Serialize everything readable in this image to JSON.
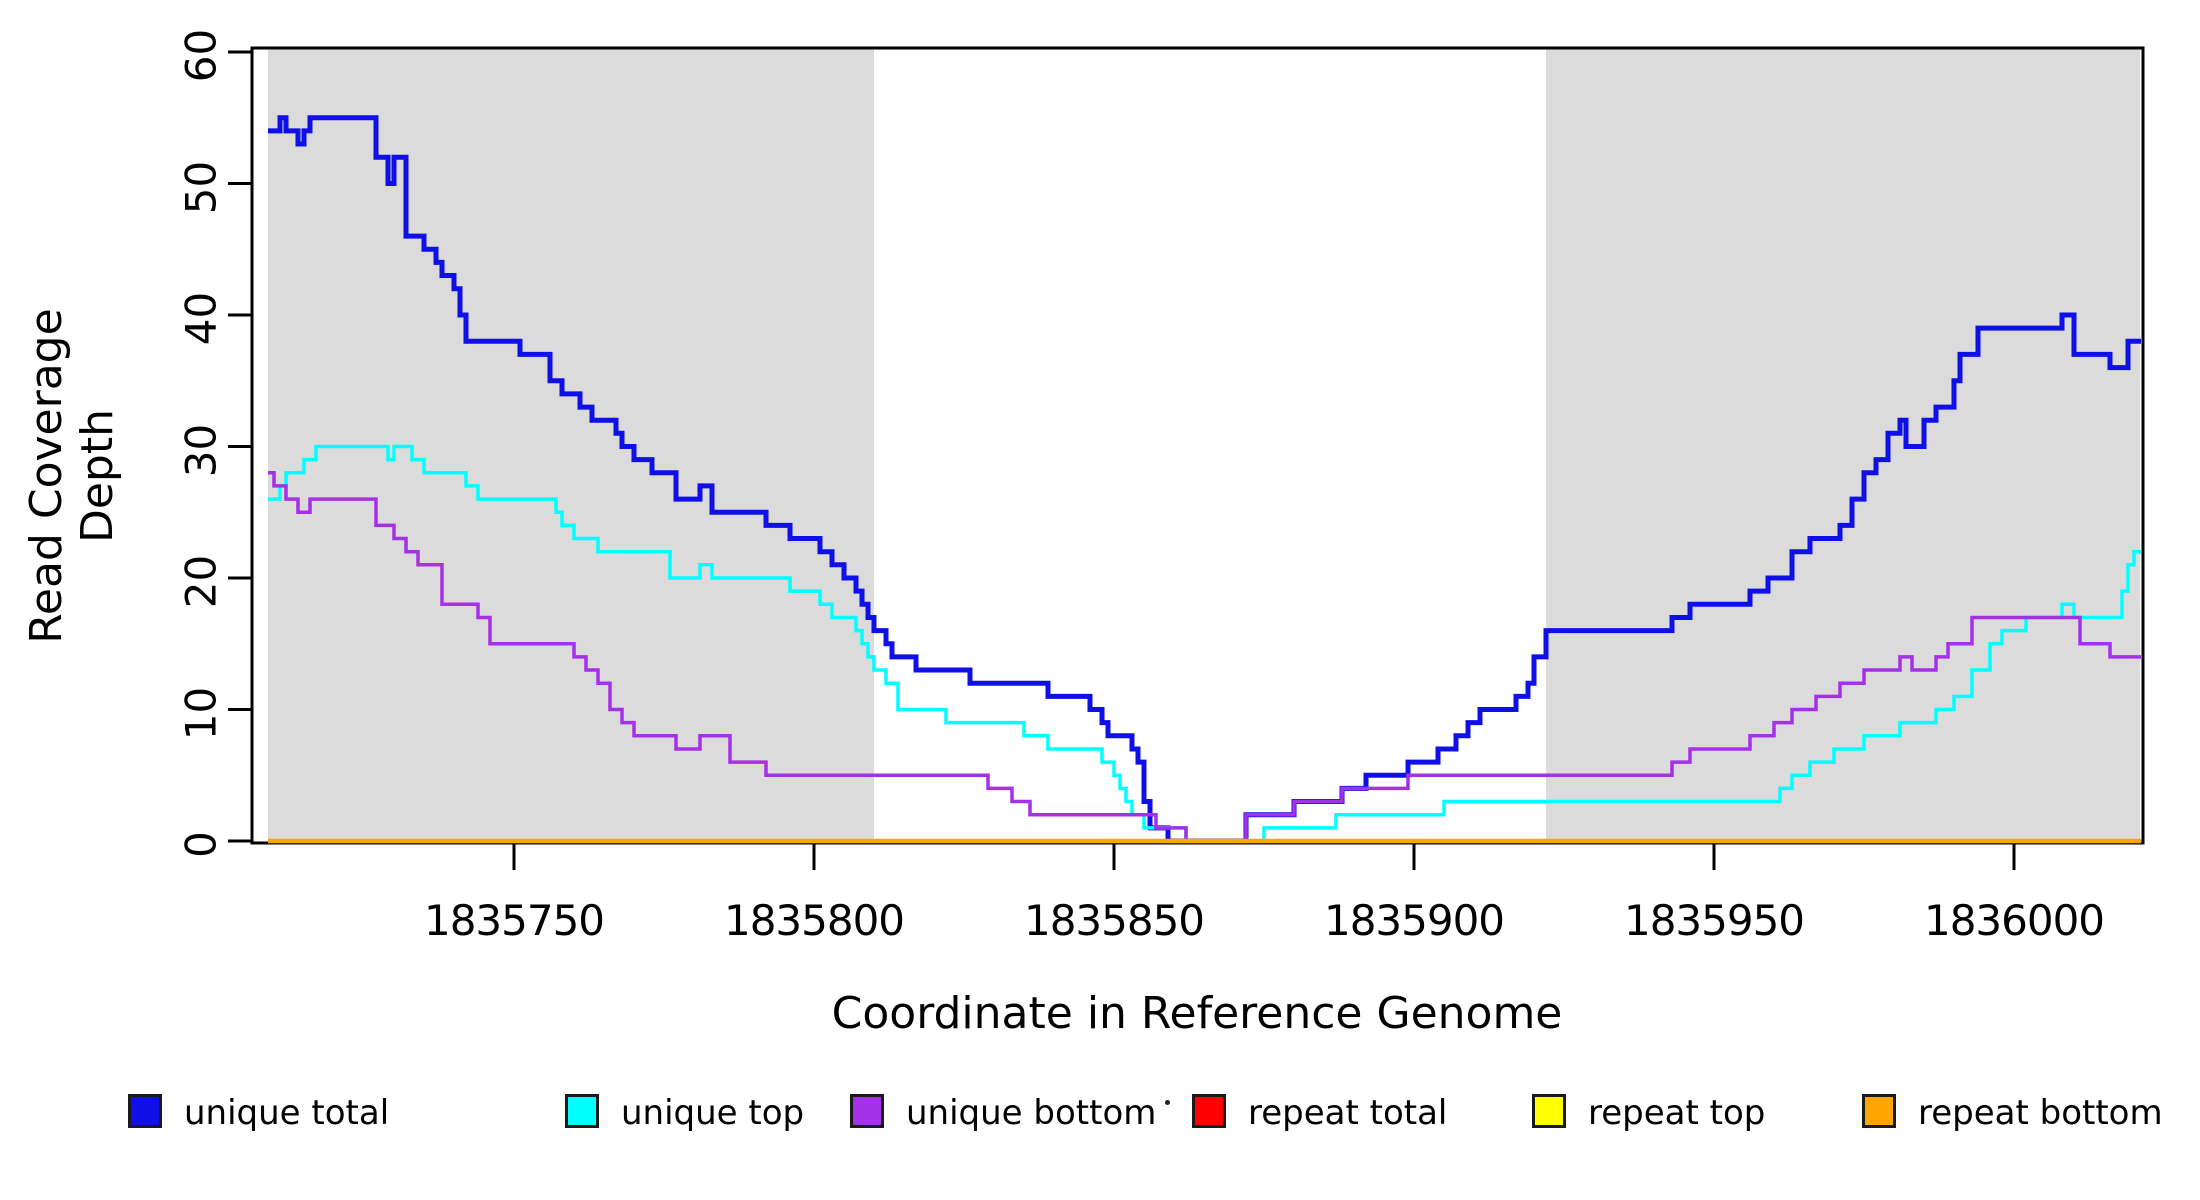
{
  "figure": {
    "x_axis_label": "Coordinate in Reference Genome",
    "y_axis_label": "Read Coverage Depth"
  },
  "chart_data": {
    "type": "line",
    "subtype": "step-coverage-plot",
    "title": "",
    "xlabel": "Coordinate in Reference Genome",
    "ylabel": "Read Coverage Depth",
    "xlim": [
      1835709,
      1836021
    ],
    "ylim": [
      0,
      60
    ],
    "grid": false,
    "x_ticks": [
      1835750,
      1835800,
      1835850,
      1835900,
      1835950,
      1836000
    ],
    "x_tick_labels": [
      "1835750",
      "1835800",
      "1835850",
      "1835900",
      "1835950",
      "1836000"
    ],
    "y_ticks": [
      0,
      10,
      20,
      30,
      40,
      50,
      60
    ],
    "y_tick_labels": [
      "0",
      "10",
      "20",
      "30",
      "40",
      "50",
      "60"
    ],
    "shaded_regions": [
      {
        "x0": 1835709,
        "x1": 1835810
      },
      {
        "x0": 1835922,
        "x1": 1836021
      }
    ],
    "shade_color": "#DBDBDB",
    "frame_color": "#000000",
    "legend_position": "bottom",
    "series": [
      {
        "name": "unique total",
        "color": "#0F0FE8",
        "width": 5,
        "steps": [
          [
            1835709,
            54
          ],
          [
            1835711,
            55
          ],
          [
            1835712,
            54
          ],
          [
            1835714,
            53
          ],
          [
            1835715,
            54
          ],
          [
            1835716,
            55
          ],
          [
            1835727,
            52
          ],
          [
            1835729,
            50
          ],
          [
            1835730,
            52
          ],
          [
            1835732,
            46
          ],
          [
            1835735,
            45
          ],
          [
            1835737,
            44
          ],
          [
            1835738,
            43
          ],
          [
            1835740,
            42
          ],
          [
            1835741,
            40
          ],
          [
            1835742,
            38
          ],
          [
            1835751,
            37
          ],
          [
            1835756,
            35
          ],
          [
            1835758,
            34
          ],
          [
            1835761,
            33
          ],
          [
            1835763,
            32
          ],
          [
            1835767,
            31
          ],
          [
            1835768,
            30
          ],
          [
            1835770,
            29
          ],
          [
            1835773,
            28
          ],
          [
            1835777,
            26
          ],
          [
            1835781,
            27
          ],
          [
            1835783,
            25
          ],
          [
            1835792,
            24
          ],
          [
            1835796,
            23
          ],
          [
            1835801,
            22
          ],
          [
            1835803,
            21
          ],
          [
            1835805,
            20
          ],
          [
            1835807,
            19
          ],
          [
            1835808,
            18
          ],
          [
            1835809,
            17
          ],
          [
            1835810,
            16
          ],
          [
            1835812,
            15
          ],
          [
            1835813,
            14
          ],
          [
            1835817,
            13
          ],
          [
            1835826,
            12
          ],
          [
            1835839,
            11
          ],
          [
            1835846,
            10
          ],
          [
            1835848,
            9
          ],
          [
            1835849,
            8
          ],
          [
            1835853,
            7
          ],
          [
            1835854,
            6
          ],
          [
            1835855,
            3
          ],
          [
            1835856,
            1
          ],
          [
            1835859,
            0
          ],
          [
            1835872,
            2
          ],
          [
            1835880,
            3
          ],
          [
            1835888,
            4
          ],
          [
            1835892,
            5
          ],
          [
            1835899,
            6
          ],
          [
            1835904,
            7
          ],
          [
            1835907,
            8
          ],
          [
            1835909,
            9
          ],
          [
            1835911,
            10
          ],
          [
            1835917,
            11
          ],
          [
            1835919,
            12
          ],
          [
            1835920,
            14
          ],
          [
            1835922,
            16
          ],
          [
            1835943,
            17
          ],
          [
            1835946,
            18
          ],
          [
            1835956,
            19
          ],
          [
            1835959,
            20
          ],
          [
            1835963,
            22
          ],
          [
            1835966,
            23
          ],
          [
            1835971,
            24
          ],
          [
            1835973,
            26
          ],
          [
            1835975,
            28
          ],
          [
            1835977,
            29
          ],
          [
            1835979,
            31
          ],
          [
            1835981,
            32
          ],
          [
            1835982,
            30
          ],
          [
            1835985,
            32
          ],
          [
            1835987,
            33
          ],
          [
            1835990,
            35
          ],
          [
            1835991,
            37
          ],
          [
            1835994,
            39
          ],
          [
            1836008,
            40
          ],
          [
            1836010,
            37
          ],
          [
            1836016,
            36
          ],
          [
            1836019,
            38
          ]
        ]
      },
      {
        "name": "unique top",
        "color": "#00FFFF",
        "width": 3.5,
        "steps": [
          [
            1835709,
            26
          ],
          [
            1835711,
            27
          ],
          [
            1835712,
            28
          ],
          [
            1835715,
            29
          ],
          [
            1835717,
            30
          ],
          [
            1835729,
            29
          ],
          [
            1835730,
            30
          ],
          [
            1835733,
            29
          ],
          [
            1835735,
            28
          ],
          [
            1835742,
            27
          ],
          [
            1835744,
            26
          ],
          [
            1835757,
            25
          ],
          [
            1835758,
            24
          ],
          [
            1835760,
            23
          ],
          [
            1835764,
            22
          ],
          [
            1835776,
            20
          ],
          [
            1835781,
            21
          ],
          [
            1835783,
            20
          ],
          [
            1835796,
            19
          ],
          [
            1835801,
            18
          ],
          [
            1835803,
            17
          ],
          [
            1835807,
            16
          ],
          [
            1835808,
            15
          ],
          [
            1835809,
            14
          ],
          [
            1835810,
            13
          ],
          [
            1835812,
            12
          ],
          [
            1835814,
            10
          ],
          [
            1835822,
            9
          ],
          [
            1835835,
            8
          ],
          [
            1835839,
            7
          ],
          [
            1835848,
            6
          ],
          [
            1835850,
            5
          ],
          [
            1835851,
            4
          ],
          [
            1835852,
            3
          ],
          [
            1835853,
            2
          ],
          [
            1835855,
            1
          ],
          [
            1835862,
            0
          ],
          [
            1835875,
            1
          ],
          [
            1835887,
            2
          ],
          [
            1835905,
            3
          ],
          [
            1835961,
            4
          ],
          [
            1835963,
            5
          ],
          [
            1835966,
            6
          ],
          [
            1835970,
            7
          ],
          [
            1835975,
            8
          ],
          [
            1835981,
            9
          ],
          [
            1835987,
            10
          ],
          [
            1835990,
            11
          ],
          [
            1835993,
            13
          ],
          [
            1835996,
            15
          ],
          [
            1835998,
            16
          ],
          [
            1836002,
            17
          ],
          [
            1836008,
            18
          ],
          [
            1836010,
            17
          ],
          [
            1836018,
            19
          ],
          [
            1836019,
            21
          ],
          [
            1836020,
            22
          ]
        ]
      },
      {
        "name": "unique bottom",
        "color": "#A430E8",
        "width": 3.5,
        "steps": [
          [
            1835709,
            28
          ],
          [
            1835710,
            27
          ],
          [
            1835712,
            26
          ],
          [
            1835714,
            25
          ],
          [
            1835716,
            26
          ],
          [
            1835727,
            24
          ],
          [
            1835730,
            23
          ],
          [
            1835732,
            22
          ],
          [
            1835734,
            21
          ],
          [
            1835738,
            18
          ],
          [
            1835744,
            17
          ],
          [
            1835746,
            15
          ],
          [
            1835760,
            14
          ],
          [
            1835762,
            13
          ],
          [
            1835764,
            12
          ],
          [
            1835766,
            10
          ],
          [
            1835768,
            9
          ],
          [
            1835770,
            8
          ],
          [
            1835777,
            7
          ],
          [
            1835781,
            8
          ],
          [
            1835786,
            6
          ],
          [
            1835792,
            5
          ],
          [
            1835829,
            4
          ],
          [
            1835833,
            3
          ],
          [
            1835836,
            2
          ],
          [
            1835857,
            1
          ],
          [
            1835862,
            0
          ],
          [
            1835872,
            2
          ],
          [
            1835880,
            3
          ],
          [
            1835888,
            4
          ],
          [
            1835899,
            5
          ],
          [
            1835943,
            6
          ],
          [
            1835946,
            7
          ],
          [
            1835956,
            8
          ],
          [
            1835960,
            9
          ],
          [
            1835963,
            10
          ],
          [
            1835967,
            11
          ],
          [
            1835971,
            12
          ],
          [
            1835975,
            13
          ],
          [
            1835981,
            14
          ],
          [
            1835983,
            13
          ],
          [
            1835987,
            14
          ],
          [
            1835989,
            15
          ],
          [
            1835993,
            17
          ],
          [
            1836011,
            15
          ],
          [
            1836016,
            14
          ]
        ]
      },
      {
        "name": "repeat total",
        "color": "#FF0000",
        "width": 3.5,
        "steps": [
          [
            1835709,
            0
          ]
        ]
      },
      {
        "name": "repeat top",
        "color": "#FFFF00",
        "width": 3.5,
        "steps": [
          [
            1835709,
            0
          ]
        ]
      },
      {
        "name": "repeat bottom",
        "color": "#FFA500",
        "width": 4.5,
        "steps": [
          [
            1835709,
            0
          ]
        ]
      }
    ],
    "legend": [
      {
        "label": "unique total",
        "color": "#0F0FE8"
      },
      {
        "label": "unique top",
        "color": "#00FFFF"
      },
      {
        "label": "unique bottom",
        "color": "#A430E8"
      },
      {
        "label": "repeat total",
        "color": "#FF0000"
      },
      {
        "label": "repeat top",
        "color": "#FFFF00"
      },
      {
        "label": "repeat bottom",
        "color": "#FFA500"
      }
    ]
  },
  "layout_note": "small stray ink dot between unique-bottom and repeat-total legend entries"
}
